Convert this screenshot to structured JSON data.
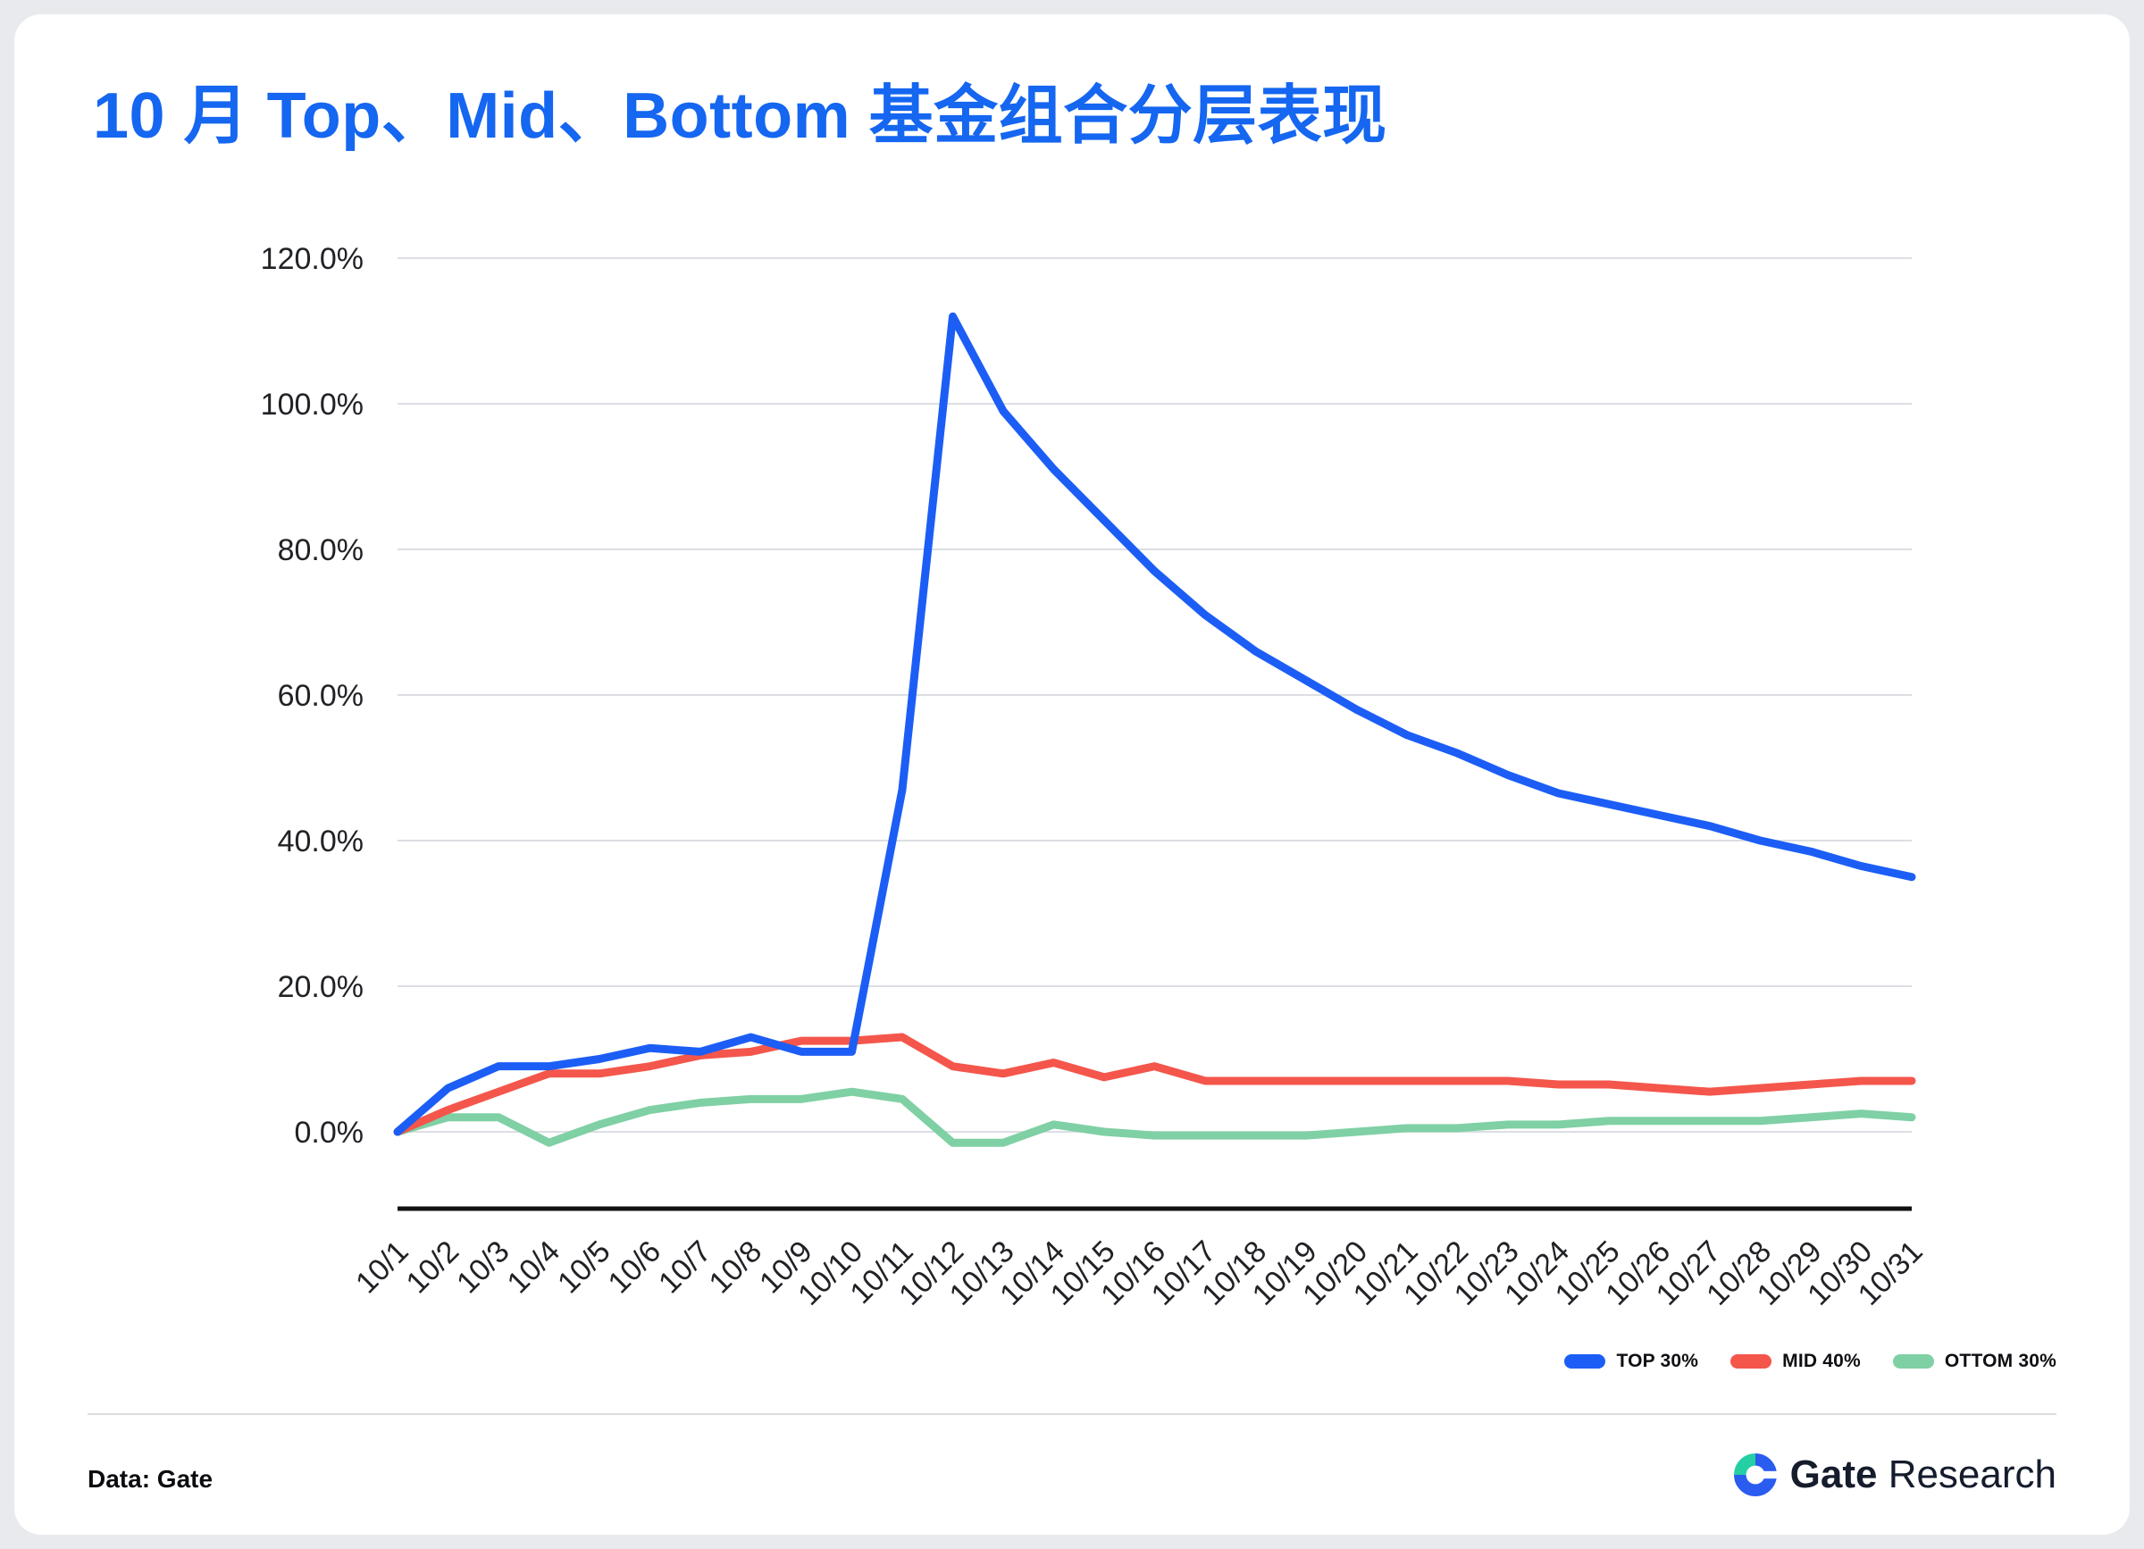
{
  "page": {
    "title": "10 月 Top、Mid、Bottom 基金组合分层表现",
    "footer": {
      "source_label": "Data: Gate",
      "brand_bold": "Gate",
      "brand_regular": "Research"
    }
  },
  "colors": {
    "title_blue": "#1566f0",
    "top_line": "#1c5ef5",
    "mid_line": "#f4564b",
    "bottom_line": "#7fd0a4",
    "grid": "#dcdee3",
    "axis": "#111111",
    "tick_label": "#202226",
    "logo_blue": "#2b5cf0",
    "logo_teal": "#25cfa4"
  },
  "chart_data": {
    "type": "line",
    "title": "10 月 Top、Mid、Bottom 基金组合分层表现",
    "x": [
      "10/1",
      "10/2",
      "10/3",
      "10/4",
      "10/5",
      "10/6",
      "10/7",
      "10/8",
      "10/9",
      "10/10",
      "10/11",
      "10/12",
      "10/13",
      "10/14",
      "10/15",
      "10/16",
      "10/17",
      "10/18",
      "10/19",
      "10/20",
      "10/21",
      "10/22",
      "10/23",
      "10/24",
      "10/25",
      "10/26",
      "10/27",
      "10/28",
      "10/29",
      "10/30",
      "10/31"
    ],
    "y_ticks": [
      0,
      20,
      40,
      60,
      80,
      100,
      120
    ],
    "y_tick_labels": [
      "0.0%",
      "20.0%",
      "40.0%",
      "60.0%",
      "80.0%",
      "100.0%",
      "120.0%"
    ],
    "ylim": [
      -12,
      124
    ],
    "grid": "horizontal",
    "legend_position": "bottom-right",
    "series": [
      {
        "name": "TOP 30%",
        "color": "#1c5ef5",
        "values": [
          0,
          6,
          9,
          9,
          10,
          11.5,
          11,
          13,
          11,
          11,
          47,
          112,
          99,
          91,
          84,
          77,
          71,
          66,
          62,
          58,
          54.5,
          52,
          49,
          46.5,
          45,
          43.5,
          42,
          40,
          38.5,
          36.5,
          35
        ]
      },
      {
        "name": "MID 40%",
        "color": "#f4564b",
        "values": [
          0,
          3,
          5.5,
          8,
          8,
          9,
          10.5,
          11,
          12.5,
          12.5,
          13,
          9,
          8,
          9.5,
          7.5,
          9,
          7,
          7,
          7,
          7,
          7,
          7,
          7,
          6.5,
          6.5,
          6,
          5.5,
          6,
          6.5,
          7,
          7
        ]
      },
      {
        "name": "OTTOM 30%",
        "color": "#7fd0a4",
        "values": [
          0,
          2,
          2,
          -1.5,
          1,
          3,
          4,
          4.5,
          4.5,
          5.5,
          4.5,
          -1.5,
          -1.5,
          1,
          0,
          -0.5,
          -0.5,
          -0.5,
          -0.5,
          0,
          0.5,
          0.5,
          1,
          1,
          1.5,
          1.5,
          1.5,
          1.5,
          2,
          2.5,
          2
        ]
      }
    ]
  }
}
